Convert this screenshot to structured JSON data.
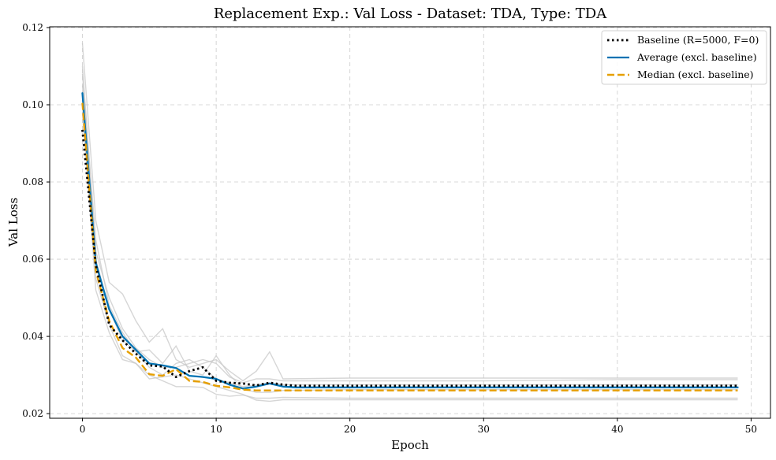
{
  "chart_data": {
    "type": "line",
    "title": "Replacement Exp.: Val Loss - Dataset: TDA, Type: TDA",
    "xlabel": "Epoch",
    "ylabel": "Val Loss",
    "xlim": [
      -2.45,
      51.45
    ],
    "ylim": [
      0.0188,
      0.1202
    ],
    "xticks": [
      0,
      10,
      20,
      30,
      40,
      50
    ],
    "yticks": [
      0.02,
      0.04,
      0.06,
      0.08,
      0.1,
      0.12
    ],
    "xtick_labels": [
      "0",
      "10",
      "20",
      "30",
      "40",
      "50"
    ],
    "ytick_labels": [
      "0.02",
      "0.04",
      "0.06",
      "0.08",
      "0.10",
      "0.12"
    ],
    "grid": true,
    "legend_position": "top-right",
    "colors": {
      "baseline": "#000000",
      "average": "#0072b2",
      "median": "#e69f00",
      "individual": "#c8c8c8",
      "grid": "#cccccc"
    },
    "series": [
      {
        "name": "Baseline (R=5000, F=0)",
        "style": "dotted",
        "x": [
          0,
          1,
          2,
          3,
          4,
          5,
          6,
          7,
          8,
          9,
          10,
          11,
          12,
          13,
          14,
          15,
          16,
          17,
          18,
          19,
          20,
          21,
          22,
          23,
          24,
          25,
          26,
          27,
          28,
          29,
          30,
          31,
          32,
          33,
          34,
          35,
          36,
          37,
          38,
          39,
          40,
          41,
          42,
          43,
          44,
          45,
          46,
          47,
          48,
          49
        ],
        "y": [
          0.0935,
          0.0585,
          0.043,
          0.039,
          0.0355,
          0.0325,
          0.0322,
          0.0295,
          0.031,
          0.032,
          0.0285,
          0.028,
          0.0278,
          0.0273,
          0.028,
          0.0275,
          0.0272,
          0.0272,
          0.0272,
          0.0272,
          0.0272,
          0.0272,
          0.0272,
          0.0272,
          0.0272,
          0.0272,
          0.0272,
          0.0272,
          0.0272,
          0.0272,
          0.0272,
          0.0272,
          0.0272,
          0.0272,
          0.0272,
          0.0272,
          0.0272,
          0.0272,
          0.0272,
          0.0272,
          0.0272,
          0.0272,
          0.0272,
          0.0272,
          0.0272,
          0.0272,
          0.0272,
          0.0272,
          0.0272,
          0.0272
        ]
      },
      {
        "name": "Average (excl. baseline)",
        "style": "solid",
        "x": [
          0,
          1,
          2,
          3,
          4,
          5,
          6,
          7,
          8,
          9,
          10,
          11,
          12,
          13,
          14,
          15,
          16,
          17,
          18,
          19,
          20,
          21,
          22,
          23,
          24,
          25,
          26,
          27,
          28,
          29,
          30,
          31,
          32,
          33,
          34,
          35,
          36,
          37,
          38,
          39,
          40,
          41,
          42,
          43,
          44,
          45,
          46,
          47,
          48,
          49
        ],
        "y": [
          0.103,
          0.059,
          0.047,
          0.04,
          0.0365,
          0.033,
          0.0325,
          0.0318,
          0.0298,
          0.0295,
          0.029,
          0.0275,
          0.0265,
          0.027,
          0.0278,
          0.027,
          0.0268,
          0.0268,
          0.0268,
          0.0268,
          0.0268,
          0.0268,
          0.0268,
          0.0268,
          0.0268,
          0.0268,
          0.0268,
          0.0268,
          0.0268,
          0.0268,
          0.0268,
          0.0268,
          0.0268,
          0.0268,
          0.0268,
          0.0268,
          0.0268,
          0.0268,
          0.0268,
          0.0268,
          0.0268,
          0.0268,
          0.0268,
          0.0268,
          0.0268,
          0.0268,
          0.0268,
          0.0268,
          0.0268,
          0.0268
        ]
      },
      {
        "name": "Median (excl. baseline)",
        "style": "dashed",
        "x": [
          0,
          1,
          2,
          3,
          4,
          5,
          6,
          7,
          8,
          9,
          10,
          11,
          12,
          13,
          14,
          15,
          16,
          17,
          18,
          19,
          20,
          21,
          22,
          23,
          24,
          25,
          26,
          27,
          28,
          29,
          30,
          31,
          32,
          33,
          34,
          35,
          36,
          37,
          38,
          39,
          40,
          41,
          42,
          43,
          44,
          45,
          46,
          47,
          48,
          49
        ],
        "y": [
          0.1005,
          0.057,
          0.044,
          0.037,
          0.0345,
          0.0302,
          0.0298,
          0.0315,
          0.0285,
          0.0282,
          0.0272,
          0.0268,
          0.0262,
          0.026,
          0.026,
          0.026,
          0.026,
          0.026,
          0.026,
          0.026,
          0.026,
          0.026,
          0.026,
          0.026,
          0.026,
          0.026,
          0.026,
          0.026,
          0.026,
          0.026,
          0.026,
          0.026,
          0.026,
          0.026,
          0.026,
          0.026,
          0.026,
          0.026,
          0.026,
          0.026,
          0.026,
          0.026,
          0.026,
          0.026,
          0.026,
          0.026,
          0.026,
          0.026,
          0.026,
          0.026
        ]
      }
    ],
    "individual_runs": [
      {
        "x": [
          0,
          1,
          2,
          3,
          4,
          5,
          6,
          7,
          8,
          9,
          10,
          11,
          12,
          13,
          14,
          15,
          20,
          30,
          40,
          49
        ],
        "y": [
          0.116,
          0.07,
          0.054,
          0.051,
          0.044,
          0.0385,
          0.042,
          0.034,
          0.032,
          0.033,
          0.034,
          0.031,
          0.0285,
          0.031,
          0.036,
          0.029,
          0.0292,
          0.0292,
          0.0292,
          0.0292
        ]
      },
      {
        "x": [
          0,
          1,
          2,
          3,
          4,
          5,
          6,
          7,
          8,
          9,
          10,
          11,
          12,
          13,
          14,
          15,
          20,
          30,
          40,
          49
        ],
        "y": [
          0.108,
          0.065,
          0.048,
          0.041,
          0.036,
          0.0365,
          0.033,
          0.0375,
          0.031,
          0.03,
          0.035,
          0.03,
          0.0265,
          0.0255,
          0.0255,
          0.026,
          0.0262,
          0.0262,
          0.0262,
          0.0262
        ]
      },
      {
        "x": [
          0,
          1,
          2,
          3,
          4,
          5,
          6,
          7,
          8,
          9,
          10,
          11,
          12,
          13,
          14,
          15,
          20,
          30,
          40,
          49
        ],
        "y": [
          0.098,
          0.055,
          0.043,
          0.035,
          0.033,
          0.03,
          0.0285,
          0.027,
          0.027,
          0.0268,
          0.025,
          0.0245,
          0.0248,
          0.024,
          0.024,
          0.0242,
          0.024,
          0.024,
          0.024,
          0.024
        ]
      },
      {
        "x": [
          0,
          1,
          2,
          3,
          4,
          5,
          6,
          7,
          8,
          9,
          10,
          11,
          12,
          13,
          14,
          15,
          20,
          30,
          40,
          49
        ],
        "y": [
          0.105,
          0.06,
          0.047,
          0.039,
          0.036,
          0.032,
          0.03,
          0.033,
          0.034,
          0.032,
          0.029,
          0.028,
          0.027,
          0.0275,
          0.028,
          0.0275,
          0.0275,
          0.0275,
          0.0275,
          0.0275
        ]
      },
      {
        "x": [
          0,
          1,
          2,
          3,
          4,
          5,
          6,
          7,
          8,
          9,
          10,
          11,
          12,
          13,
          14,
          15,
          20,
          30,
          40,
          49
        ],
        "y": [
          0.1,
          0.052,
          0.041,
          0.034,
          0.033,
          0.029,
          0.0295,
          0.03,
          0.029,
          0.028,
          0.027,
          0.026,
          0.025,
          0.0235,
          0.0232,
          0.0236,
          0.0236,
          0.0236,
          0.0236,
          0.0236
        ]
      },
      {
        "x": [
          0,
          1,
          2,
          3,
          4,
          5,
          6,
          7,
          8,
          9,
          10,
          11,
          12,
          13,
          14,
          15,
          20,
          30,
          40,
          49
        ],
        "y": [
          0.11,
          0.062,
          0.05,
          0.042,
          0.037,
          0.034,
          0.032,
          0.032,
          0.033,
          0.034,
          0.033,
          0.0295,
          0.028,
          0.029,
          0.029,
          0.0285,
          0.0285,
          0.0285,
          0.0288,
          0.0288
        ]
      }
    ]
  }
}
